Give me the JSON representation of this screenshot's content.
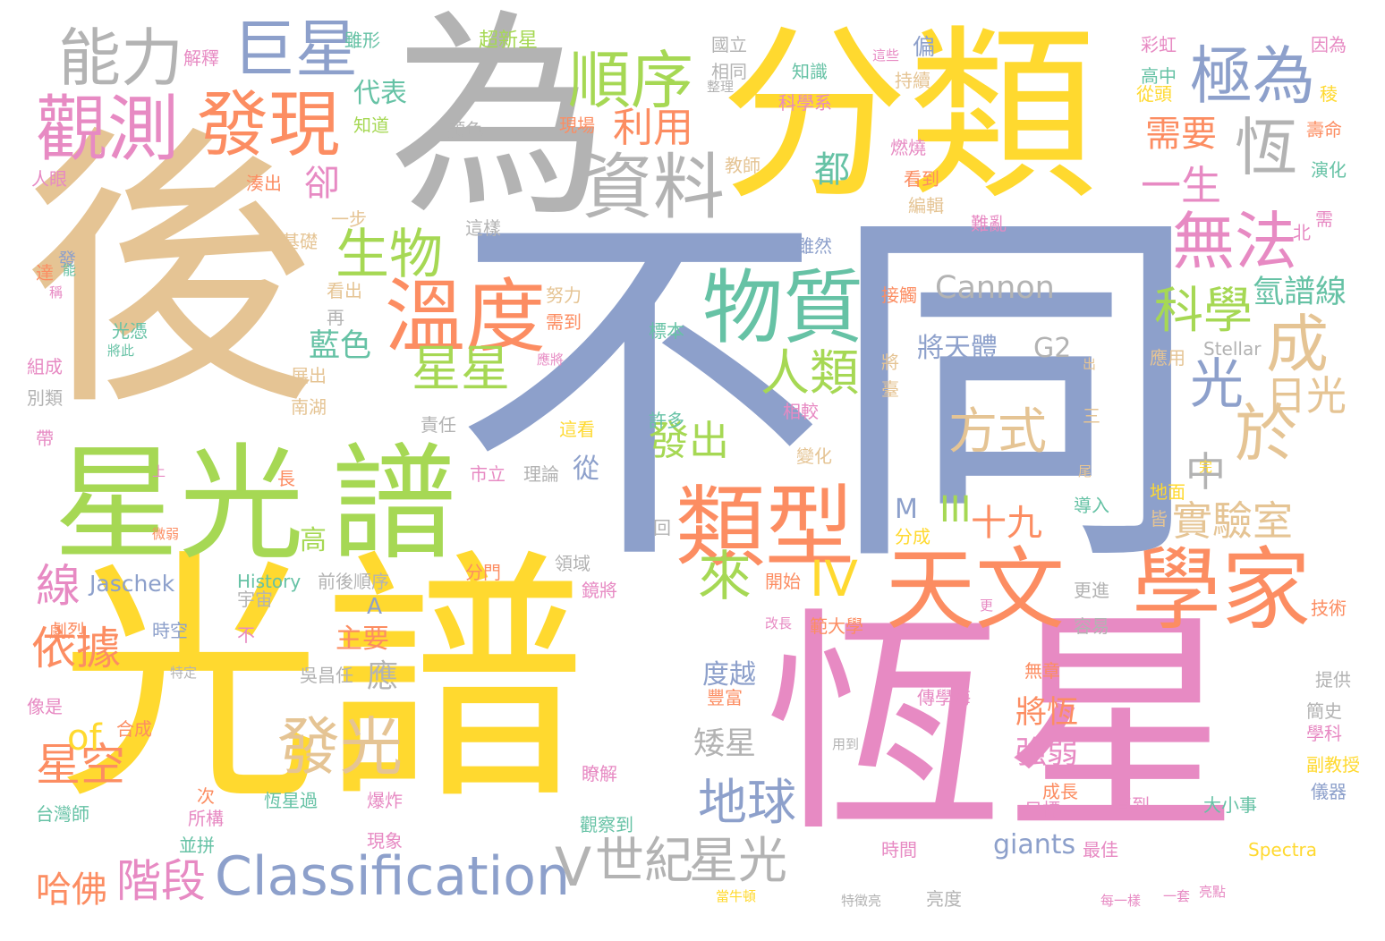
{
  "palette": {
    "gold": "#ffd92f",
    "purple_blue": "#8da0cb",
    "pink": "#e78ac3",
    "tan": "#e5c494",
    "gray": "#b3b3b3",
    "orange": "#fc8d62",
    "green": "#a6d854",
    "teal": "#66c2a5"
  },
  "words": [
    "不同",
    "光譜",
    "恆星",
    "後",
    "為",
    "分類",
    "星光",
    "譜",
    "天文",
    "學家",
    "類型",
    "溫度",
    "物質",
    "觀測",
    "發現",
    "資料",
    "能力",
    "巨星",
    "順序",
    "極為",
    "恆",
    "無法",
    "於",
    "成",
    "光",
    "發光",
    "生物",
    "科學",
    "星星",
    "人類",
    "方式",
    "Classification",
    "地球",
    "星光",
    "世紀",
    "V",
    "中",
    "實驗室",
    "日光",
    "Cannon",
    "氫譜線",
    "依據",
    "線",
    "星空",
    "階段",
    "哈佛",
    "of",
    "來",
    "十九",
    "III",
    "IV",
    "發出",
    "利用",
    "代表",
    "都",
    "卻",
    "藍色",
    "一生",
    "需要",
    "將天體",
    "G2",
    "度越",
    "矮星",
    "將恆",
    "強弱",
    "giants",
    "Jaschek",
    "A",
    "主要",
    "應",
    "高",
    "M",
    "Spectra",
    "History",
    "Stellar",
    "超新星",
    "解釋",
    "知道",
    "顏色",
    "現場",
    "科學系",
    "教師",
    "燃燒",
    "看到",
    "編輯",
    "難亂",
    "北",
    "需",
    "演化",
    "壽命",
    "稜",
    "高中",
    "從頭",
    "彩虹",
    "因為",
    "國立",
    "相同",
    "整理",
    "知識",
    "持續",
    "偏",
    "這些",
    "雖形",
    "一步",
    "基礎",
    "達",
    "發",
    "稱",
    "光憑",
    "將此",
    "看出",
    "再",
    "組成",
    "別類",
    "帶",
    "上",
    "劇烈",
    "微弱",
    "像是",
    "合成",
    "台灣師",
    "次",
    "所構",
    "並拼",
    "恆星過",
    "爆炸",
    "現象",
    "觀察到",
    "瞭解",
    "大小事",
    "目標",
    "成長",
    "最佳",
    "時間",
    "直到",
    "每一樣",
    "一套",
    "亮點",
    "亮度",
    "特徵亮",
    "當牛頓",
    "用到",
    "儀器",
    "副教授",
    "學科",
    "簡史",
    "提供",
    "技術",
    "更",
    "導入",
    "容易",
    "更進",
    "地面",
    "皆",
    "尾",
    "完",
    "三",
    "出",
    "應用",
    "接觸",
    "將",
    "臺",
    "相較",
    "變化",
    "許多",
    "這看",
    "市立",
    "理論",
    "從",
    "分成",
    "回",
    "分門",
    "領域",
    "鏡將",
    "開始",
    "改長",
    "範大學",
    "前後順序",
    "宇宙",
    "時空",
    "特定",
    "吳昌任",
    "不",
    "豐富",
    "傳學海",
    "無章",
    "責任",
    "南湖",
    "展出",
    "雖然",
    "標本",
    "努力",
    "需到",
    "應將",
    "人眼",
    "湊出",
    "這樣",
    "能",
    "長"
  ]
}
